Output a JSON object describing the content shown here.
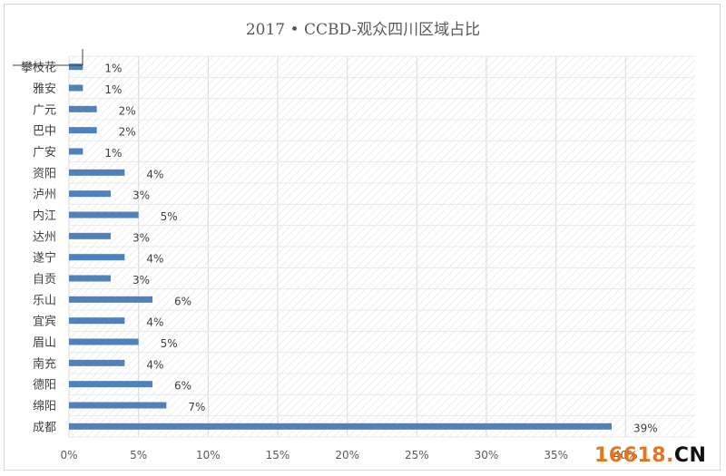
{
  "chart_data": {
    "type": "bar",
    "orientation": "horizontal",
    "title": "2017 • CCBD-观众四川区域占比",
    "categories": [
      "攀枝花",
      "雅安",
      "广元",
      "巴中",
      "广安",
      "资阳",
      "泸州",
      "内江",
      "达州",
      "遂宁",
      "自贡",
      "乐山",
      "宜宾",
      "眉山",
      "南充",
      "德阳",
      "绵阳",
      "成都"
    ],
    "values": [
      1,
      1,
      2,
      2,
      1,
      4,
      3,
      5,
      3,
      4,
      3,
      6,
      4,
      5,
      4,
      6,
      7,
      39
    ],
    "value_labels": [
      "1%",
      "1%",
      "2%",
      "2%",
      "1%",
      "4%",
      "3%",
      "5%",
      "3%",
      "4%",
      "3%",
      "6%",
      "4%",
      "5%",
      "4%",
      "6%",
      "7%",
      "39%"
    ],
    "x_ticks": [
      "0%",
      "5%",
      "10%",
      "15%",
      "20%",
      "25%",
      "30%",
      "35%",
      "40%"
    ],
    "xlim": [
      0,
      45
    ],
    "bar_color": "#4f81bd",
    "grid": true,
    "legend": "none"
  },
  "watermark": {
    "num": "16618",
    "dot": ".",
    "cn": "CN"
  }
}
